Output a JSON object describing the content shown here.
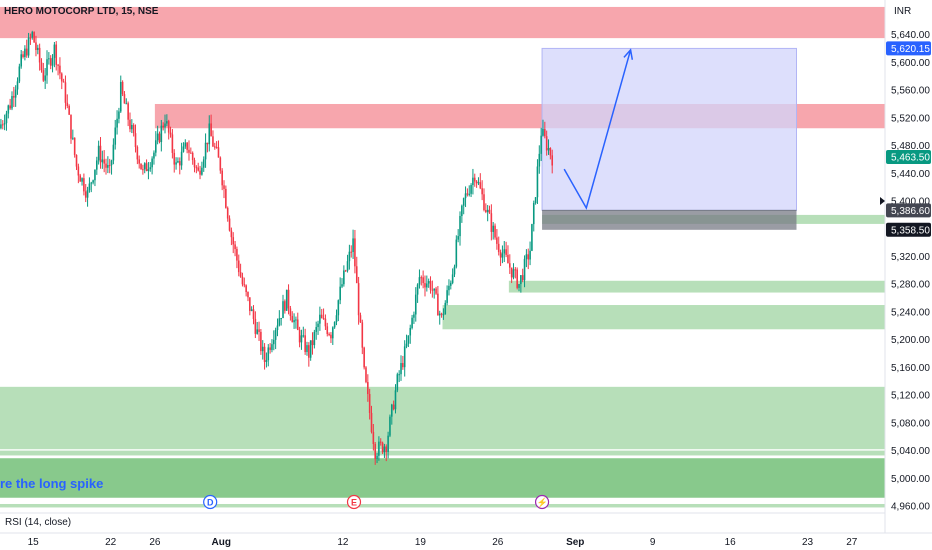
{
  "header": {
    "symbol_title": "HERO MOTOCORP LTD, 15, NSE",
    "currency": "INR"
  },
  "indicator": {
    "label": "RSI (14, close)"
  },
  "annotation": {
    "text": "re the long spike"
  },
  "event_markers": [
    {
      "symbol": "D",
      "x": "2024-07-31",
      "color": "#2962ff"
    },
    {
      "symbol": "E",
      "x": "2024-08-13",
      "color": "#f23645"
    },
    {
      "symbol": "⚡",
      "x": "2024-08-30",
      "color": "#9c27b0"
    }
  ],
  "price_badges": [
    {
      "value": 5620.15,
      "label": "5,620.15",
      "bg": "#2962ff",
      "fg": "#ffffff"
    },
    {
      "value": 5463.5,
      "label": "5,463.50",
      "bg": "#089981",
      "fg": "#ffffff"
    },
    {
      "value": 5386.6,
      "label": "5,386.60",
      "bg": "#434651",
      "fg": "#ffffff"
    },
    {
      "value": 5358.5,
      "label": "5,358.50",
      "bg": "#131722",
      "fg": "#ffffff"
    }
  ],
  "chart_data": {
    "type": "candlestick",
    "x_range": [
      "2024-07-12",
      "2024-09-30"
    ],
    "y_range": [
      4950,
      5690
    ],
    "y_ticks": [
      {
        "value": 4960,
        "label": "4,960.00"
      },
      {
        "value": 5000,
        "label": "5,000.00"
      },
      {
        "value": 5040,
        "label": "5,040.00"
      },
      {
        "value": 5080,
        "label": "5,080.00"
      },
      {
        "value": 5120,
        "label": "5,120.00"
      },
      {
        "value": 5160,
        "label": "5,160.00"
      },
      {
        "value": 5200,
        "label": "5,200.00"
      },
      {
        "value": 5240,
        "label": "5,240.00"
      },
      {
        "value": 5280,
        "label": "5,280.00"
      },
      {
        "value": 5320,
        "label": "5,320.00"
      },
      {
        "value": 5360,
        "label": "5,360.00"
      },
      {
        "value": 5400,
        "label": "5,400.00"
      },
      {
        "value": 5440,
        "label": "5,440.00"
      },
      {
        "value": 5480,
        "label": "5,480.00"
      },
      {
        "value": 5520,
        "label": "5,520.00"
      },
      {
        "value": 5560,
        "label": "5,560.00"
      },
      {
        "value": 5600,
        "label": "5,600.00"
      },
      {
        "value": 5640,
        "label": "5,640.00"
      }
    ],
    "x_ticks": [
      {
        "date": "2024-07-15",
        "label": "15",
        "bold": false
      },
      {
        "date": "2024-07-22",
        "label": "22",
        "bold": false
      },
      {
        "date": "2024-07-26",
        "label": "26",
        "bold": false
      },
      {
        "date": "2024-08-01",
        "label": "Aug",
        "bold": true
      },
      {
        "date": "2024-08-12",
        "label": "12",
        "bold": false
      },
      {
        "date": "2024-08-19",
        "label": "19",
        "bold": false
      },
      {
        "date": "2024-08-26",
        "label": "26",
        "bold": false
      },
      {
        "date": "2024-09-02",
        "label": "Sep",
        "bold": true
      },
      {
        "date": "2024-09-09",
        "label": "9",
        "bold": false
      },
      {
        "date": "2024-09-16",
        "label": "16",
        "bold": false
      },
      {
        "date": "2024-09-23",
        "label": "23",
        "bold": false
      },
      {
        "date": "2024-09-27",
        "label": "27",
        "bold": false
      }
    ],
    "zones": [
      {
        "kind": "supply",
        "x0": "2024-07-12",
        "x1": null,
        "y0": 5635,
        "y1": 5680,
        "color": "#f7a6ad"
      },
      {
        "kind": "supply",
        "x0": "2024-07-26",
        "x1": null,
        "y0": 5505,
        "y1": 5540,
        "color": "#f7a6ad"
      },
      {
        "kind": "demand",
        "x0": "2024-08-30",
        "x1": null,
        "y0": 5367,
        "y1": 5380,
        "color": "#b7dfb9"
      },
      {
        "kind": "demand",
        "x0": "2024-08-27",
        "x1": null,
        "y0": 5268,
        "y1": 5285,
        "color": "#b7dfb9"
      },
      {
        "kind": "demand",
        "x0": "2024-08-21",
        "x1": null,
        "y0": 5215,
        "y1": 5250,
        "color": "#b7dfb9"
      },
      {
        "kind": "demand",
        "x0": "2024-07-12",
        "x1": null,
        "y0": 5042,
        "y1": 5132,
        "color": "#b7dfb9"
      },
      {
        "kind": "demand",
        "x0": "2024-07-12",
        "x1": null,
        "y0": 5033,
        "y1": 5040,
        "color": "#b7dfb9"
      },
      {
        "kind": "demand",
        "x0": "2024-07-12",
        "x1": null,
        "y0": 4972,
        "y1": 5029,
        "color": "#88c98c"
      },
      {
        "kind": "demand",
        "x0": "2024-07-12",
        "x1": null,
        "y0": 4958,
        "y1": 4963,
        "color": "#b7dfb9"
      }
    ],
    "position": {
      "type": "long",
      "x0": "2024-08-30",
      "x1": "2024-09-22",
      "entry": 5386.6,
      "target": 5620.15,
      "stop": 5358.5,
      "profit_color": "#d1d4fb",
      "loss_color": "#787b86"
    },
    "projection": {
      "color": "#2962ff",
      "points": [
        {
          "x": "2024-09-01",
          "y": 5446
        },
        {
          "x": "2024-09-03",
          "y": 5390
        },
        {
          "x": "2024-09-07",
          "y": 5618
        }
      ]
    },
    "price_path": [
      {
        "x": "2024-07-12",
        "y": 5505
      },
      {
        "x": "2024-07-13",
        "y": 5540
      },
      {
        "x": "2024-07-14",
        "y": 5600
      },
      {
        "x": "2024-07-15",
        "y": 5640
      },
      {
        "x": "2024-07-16",
        "y": 5580
      },
      {
        "x": "2024-07-17",
        "y": 5620
      },
      {
        "x": "2024-07-18",
        "y": 5550
      },
      {
        "x": "2024-07-19",
        "y": 5450
      },
      {
        "x": "2024-07-20",
        "y": 5410
      },
      {
        "x": "2024-07-21",
        "y": 5470
      },
      {
        "x": "2024-07-22",
        "y": 5440
      },
      {
        "x": "2024-07-23",
        "y": 5560
      },
      {
        "x": "2024-07-24",
        "y": 5500
      },
      {
        "x": "2024-07-25",
        "y": 5440
      },
      {
        "x": "2024-07-26",
        "y": 5470
      },
      {
        "x": "2024-07-27",
        "y": 5520
      },
      {
        "x": "2024-07-28",
        "y": 5450
      },
      {
        "x": "2024-07-29",
        "y": 5480
      },
      {
        "x": "2024-07-30",
        "y": 5440
      },
      {
        "x": "2024-07-31",
        "y": 5500
      },
      {
        "x": "2024-08-01",
        "y": 5450
      },
      {
        "x": "2024-08-02",
        "y": 5350
      },
      {
        "x": "2024-08-03",
        "y": 5280
      },
      {
        "x": "2024-08-04",
        "y": 5230
      },
      {
        "x": "2024-08-05",
        "y": 5170
      },
      {
        "x": "2024-08-06",
        "y": 5220
      },
      {
        "x": "2024-08-07",
        "y": 5260
      },
      {
        "x": "2024-08-08",
        "y": 5210
      },
      {
        "x": "2024-08-09",
        "y": 5180
      },
      {
        "x": "2024-08-10",
        "y": 5230
      },
      {
        "x": "2024-08-11",
        "y": 5210
      },
      {
        "x": "2024-08-12",
        "y": 5280
      },
      {
        "x": "2024-08-13",
        "y": 5340
      },
      {
        "x": "2024-08-14",
        "y": 5150
      },
      {
        "x": "2024-08-15",
        "y": 5040
      },
      {
        "x": "2024-08-16",
        "y": 5050
      },
      {
        "x": "2024-08-17",
        "y": 5140
      },
      {
        "x": "2024-08-18",
        "y": 5200
      },
      {
        "x": "2024-08-19",
        "y": 5290
      },
      {
        "x": "2024-08-20",
        "y": 5280
      },
      {
        "x": "2024-08-21",
        "y": 5230
      },
      {
        "x": "2024-08-22",
        "y": 5300
      },
      {
        "x": "2024-08-23",
        "y": 5400
      },
      {
        "x": "2024-08-24",
        "y": 5440
      },
      {
        "x": "2024-08-25",
        "y": 5390
      },
      {
        "x": "2024-08-26",
        "y": 5340
      },
      {
        "x": "2024-08-27",
        "y": 5310
      },
      {
        "x": "2024-08-28",
        "y": 5280
      },
      {
        "x": "2024-08-29",
        "y": 5330
      },
      {
        "x": "2024-08-30",
        "y": 5500
      },
      {
        "x": "2024-08-31",
        "y": 5463
      }
    ]
  }
}
